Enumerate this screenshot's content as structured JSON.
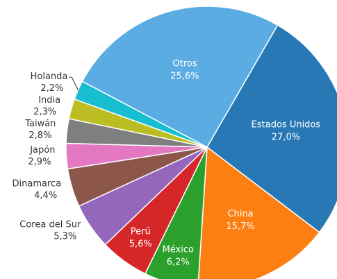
{
  "chart_data": {
    "type": "pie",
    "categories": [
      "Estados Unidos",
      "China",
      "México",
      "Perú",
      "Corea del Sur",
      "Dinamarca",
      "Japón",
      "Taiwán",
      "India",
      "Holanda",
      "Otros"
    ],
    "values": [
      27.0,
      15.7,
      6.2,
      5.6,
      5.3,
      4.4,
      2.9,
      2.8,
      2.3,
      2.2,
      25.6
    ],
    "value_labels": [
      "27,0%",
      "15,7%",
      "6,2%",
      "5,6%",
      "5,3%",
      "4,4%",
      "2,9%",
      "2,8%",
      "2,3%",
      "2,2%",
      "25,6%"
    ],
    "colors": [
      "#2878b5",
      "#fd7f12",
      "#2ca02c",
      "#d62728",
      "#9467bd",
      "#8c564b",
      "#e377c2",
      "#7f7f7f",
      "#bcbd22",
      "#17becf",
      "#5aace2"
    ]
  }
}
